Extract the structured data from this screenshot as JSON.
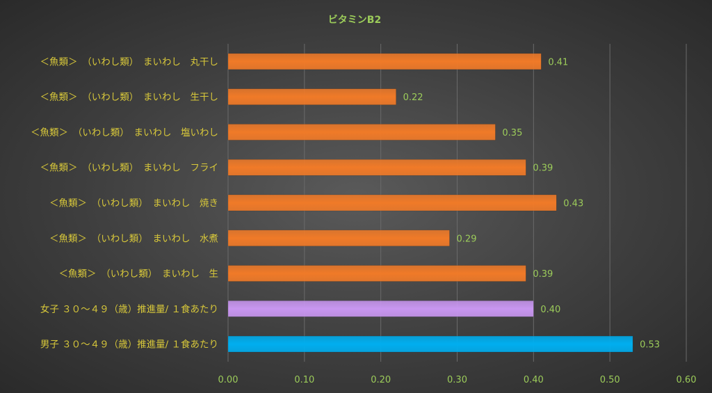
{
  "chart_data": {
    "type": "bar",
    "orientation": "horizontal",
    "title": "ビタミンB2",
    "xlim": [
      0,
      0.6
    ],
    "ticks": [
      "0.00",
      "0.10",
      "0.20",
      "0.30",
      "0.40",
      "0.50",
      "0.60"
    ],
    "tick_values": [
      0,
      0.1,
      0.2,
      0.3,
      0.4,
      0.5,
      0.6
    ],
    "grid": true,
    "legend": "none",
    "categories": [
      "＜魚類＞　（いわし類）　まいわし　丸干し",
      "＜魚類＞　（いわし類）　まいわし　生干し",
      "＜魚類＞　（いわし類）　まいわし　塩いわし",
      "＜魚類＞　（いわし類）　まいわし　フライ",
      "＜魚類＞　（いわし類）　まいわし　焼き",
      "＜魚類＞　（いわし類）　まいわし　水煮",
      "＜魚類＞　（いわし類）　まいわし　生",
      "女子 ３０～４９（歳）推進量/ １食あたり",
      "男子 ３０～４９（歳）推進量/ １食あたり"
    ],
    "values": [
      0.41,
      0.22,
      0.35,
      0.39,
      0.43,
      0.29,
      0.39,
      0.4,
      0.53
    ],
    "value_labels": [
      "0.41",
      "0.22",
      "0.35",
      "0.39",
      "0.43",
      "0.29",
      "0.39",
      "0.40",
      "0.53"
    ],
    "colors": [
      "#f07a28",
      "#f07a28",
      "#f07a28",
      "#f07a28",
      "#f07a28",
      "#f07a28",
      "#f07a28",
      "#c896f0",
      "#00aeef"
    ]
  }
}
